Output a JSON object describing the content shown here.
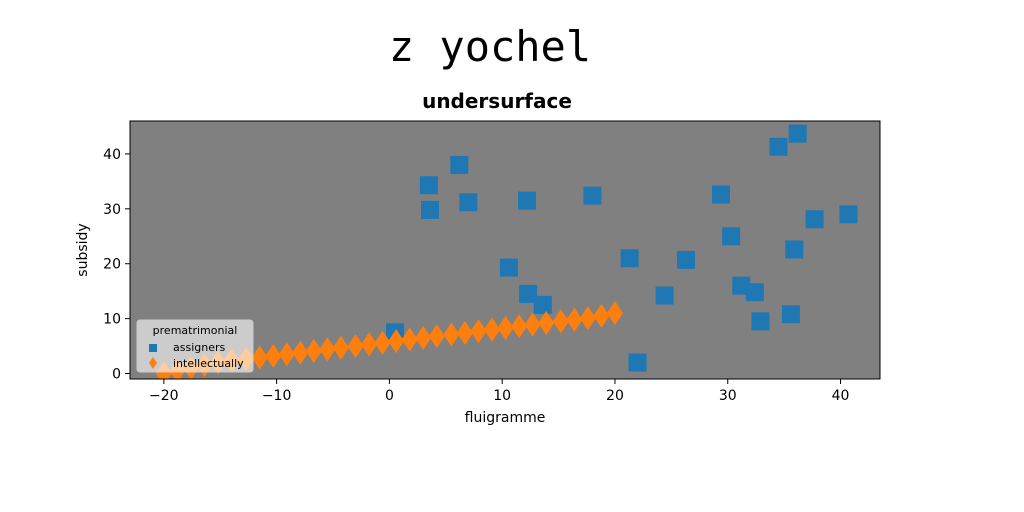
{
  "figure": {
    "suptitle": "z yochel"
  },
  "chart_data": {
    "type": "scatter",
    "title": "undersurface",
    "xlabel": "fluigramme",
    "ylabel": "subsidy",
    "xlim": [
      -23,
      43.5
    ],
    "ylim": [
      -1,
      46
    ],
    "xticks": [
      -20,
      -10,
      0,
      10,
      20,
      30,
      40
    ],
    "yticks": [
      0,
      10,
      20,
      30,
      40
    ],
    "plot_background": "#808080",
    "legend": {
      "title": "prematrimonial",
      "placement": "lower-left"
    },
    "series": [
      {
        "name": "assigners",
        "marker": "square",
        "color": "#1f77b4",
        "x": [
          0.5,
          3.5,
          3.6,
          6.2,
          7.0,
          10.6,
          12.2,
          12.3,
          13.6,
          18.0,
          21.3,
          22.0,
          24.4,
          26.3,
          29.4,
          30.3,
          31.2,
          32.4,
          32.9,
          34.5,
          35.6,
          35.9,
          36.2,
          37.7,
          40.7
        ],
        "y": [
          7.5,
          34.3,
          29.8,
          38.0,
          31.2,
          19.3,
          31.5,
          14.5,
          12.5,
          32.4,
          21.0,
          2.0,
          14.2,
          20.7,
          32.6,
          25.0,
          16.0,
          14.8,
          9.5,
          41.3,
          10.8,
          22.6,
          43.7,
          28.1,
          29.0
        ]
      },
      {
        "name": "intellectually",
        "marker": "diamond",
        "color": "#ff7f0e",
        "x": [
          -20.0,
          -18.8,
          -17.6,
          -16.4,
          -15.2,
          -14.0,
          -12.7,
          -11.5,
          -10.3,
          -9.1,
          -7.9,
          -6.7,
          -5.5,
          -4.3,
          -3.0,
          -1.8,
          -0.6,
          0.6,
          1.8,
          3.0,
          4.2,
          5.5,
          6.7,
          7.9,
          9.1,
          10.3,
          11.5,
          12.7,
          13.9,
          15.2,
          16.4,
          17.6,
          18.8,
          20.0
        ],
        "y": [
          0.0,
          0.5,
          1.0,
          1.5,
          2.0,
          2.3,
          2.6,
          2.9,
          3.2,
          3.5,
          3.8,
          4.1,
          4.4,
          4.7,
          5.0,
          5.3,
          5.6,
          5.9,
          6.2,
          6.5,
          6.8,
          7.1,
          7.4,
          7.7,
          8.0,
          8.3,
          8.6,
          8.9,
          9.2,
          9.5,
          9.8,
          10.1,
          10.5,
          11.0
        ]
      }
    ]
  }
}
